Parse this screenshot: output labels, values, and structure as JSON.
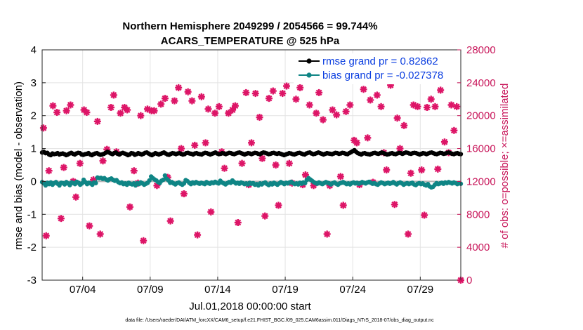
{
  "chart_data": {
    "type": "line",
    "title_line1": "Northern Hemisphere 2049299 / 2054566 = 99.744%",
    "title_line2": "ACARS_TEMPERATURE @ 525 hPa",
    "ylabel": "rmse and bias (model - observation)",
    "ylabel_right": "# of obs: o=possible; ×=assimilated",
    "xlabel": "Jul.01,2018 00:00:00 start",
    "footnote": "data file: /Users/raeder/DAI/ATM_forcXX/CAM6_setup/f.e21.FHIST_BGC.f09_025.CAM6assim.011/Diags_NTrS_2018-07/obs_diag_output.nc",
    "x_tick_labels": [
      "07/04",
      "07/09",
      "07/14",
      "07/19",
      "07/24",
      "07/29"
    ],
    "x_ticks_day": [
      4,
      9,
      14,
      19,
      24,
      29
    ],
    "xlim_day": [
      1.0,
      32.0
    ],
    "ylim": [
      -3,
      4
    ],
    "y_tick_labels": [
      "-3",
      "-2",
      "-1",
      "0",
      "1",
      "2",
      "3",
      "4"
    ],
    "ylim_right": [
      0,
      28000
    ],
    "y_tick_labels_right": [
      "0",
      "4000",
      "8000",
      "12000",
      "16000",
      "20000",
      "24000",
      "28000"
    ],
    "grid": true,
    "legend_position": "top-right",
    "series": [
      {
        "name": "rmse grand pr = 0.82862",
        "color": "#000000",
        "values": [
          0.88,
          0.9,
          0.86,
          0.87,
          0.82,
          0.8,
          0.85,
          0.83,
          0.84,
          0.86,
          0.82,
          0.84,
          0.85,
          0.83,
          0.8,
          0.82,
          0.85,
          0.87,
          0.84,
          0.82,
          0.85,
          0.87,
          0.86,
          0.82,
          0.81,
          0.83,
          0.84,
          0.86,
          0.82,
          0.8,
          0.83,
          0.85,
          0.86,
          0.83,
          0.81,
          0.82,
          0.84,
          0.87,
          0.9,
          0.88,
          0.85,
          0.83,
          0.86,
          0.88,
          0.84,
          0.82,
          0.85,
          0.87,
          0.85,
          0.83,
          0.8,
          0.82,
          0.86,
          0.85,
          0.81,
          0.83,
          0.86,
          0.84,
          0.82,
          0.84,
          0.87,
          0.88,
          0.85,
          0.82,
          0.8,
          0.83,
          0.86,
          0.84,
          0.82,
          0.84,
          0.86,
          0.88,
          0.85,
          0.82,
          0.81,
          0.84,
          0.86,
          0.85,
          0.83,
          0.85,
          0.86,
          0.84,
          0.82,
          0.83,
          0.86,
          0.87,
          0.85,
          0.84,
          0.82,
          0.85,
          0.86,
          0.84,
          0.83,
          0.82,
          0.85,
          0.87,
          0.86,
          0.84,
          0.82,
          0.84,
          0.86,
          0.88,
          0.85,
          0.83,
          0.84,
          0.86,
          0.85,
          0.83,
          0.85,
          0.87,
          0.86,
          0.84,
          0.83,
          0.85,
          0.87,
          0.88,
          0.86,
          0.84,
          0.82,
          0.84,
          0.86,
          0.85,
          0.83,
          0.85,
          0.87,
          0.86,
          0.84,
          0.83,
          0.86,
          0.88,
          0.87,
          0.85,
          0.83,
          0.84,
          0.86,
          0.87,
          0.85,
          0.84,
          0.86,
          0.84,
          0.82,
          0.8,
          0.82,
          0.84,
          0.86,
          0.85,
          0.83,
          0.82,
          0.84,
          0.86,
          0.87,
          0.85,
          0.83,
          0.82,
          0.85,
          0.87,
          0.88,
          0.85,
          0.83,
          0.84,
          0.86,
          0.88,
          0.86,
          0.84,
          0.82,
          0.84,
          0.86,
          0.85,
          0.84,
          0.83,
          0.85,
          0.87,
          0.86,
          0.84,
          0.85,
          0.87,
          0.86,
          0.84,
          0.83,
          0.86,
          0.89,
          0.92,
          0.95,
          0.9,
          0.86,
          0.84,
          0.82,
          0.85,
          0.86,
          0.84,
          0.83,
          0.82,
          0.84,
          0.86,
          0.87,
          0.85,
          0.84,
          0.86,
          0.88,
          0.86,
          0.84,
          0.82,
          0.83,
          0.85,
          0.86,
          0.84,
          0.83,
          0.85,
          0.87,
          0.86,
          0.84,
          0.86,
          0.88,
          0.87,
          0.85,
          0.84,
          0.86,
          0.87,
          0.86,
          0.84,
          0.82,
          0.84,
          0.86,
          0.85,
          0.83,
          0.85,
          0.87,
          0.88,
          0.86,
          0.84,
          0.83,
          0.85,
          0.87,
          0.86,
          0.84,
          0.85,
          0.87,
          0.88,
          0.86,
          0.84,
          0.83,
          0.85,
          0.86,
          0.84,
          0.83
        ]
      },
      {
        "name": "bias grand pr = -0.027378",
        "color": "#0f8585",
        "values": [
          -0.02,
          -0.06,
          -0.12,
          -0.04,
          -0.08,
          -0.03,
          -0.1,
          -0.05,
          -0.02,
          -0.07,
          -0.12,
          -0.04,
          -0.05,
          -0.09,
          -0.02,
          -0.06,
          -0.11,
          -0.03,
          -0.05,
          -0.08,
          -0.01,
          -0.04,
          -0.1,
          -0.06,
          0.05,
          -0.02,
          -0.08,
          -0.04,
          -0.06,
          -0.1,
          -0.03,
          -0.05,
          0.12,
          0.1,
          0.11,
          0.08,
          0.1,
          0.06,
          0.03,
          0.07,
          0.09,
          0.05,
          0.02,
          0.04,
          -0.02,
          -0.05,
          -0.03,
          -0.08,
          -0.06,
          -0.1,
          -0.04,
          -0.07,
          -0.09,
          -0.06,
          -0.12,
          -0.05,
          -0.08,
          -0.03,
          -0.06,
          -0.1,
          -0.07,
          -0.04,
          0.03,
          0.15,
          0.1,
          0.06,
          0.03,
          -0.02,
          -0.05,
          0.02,
          0.05,
          0.18,
          0.08,
          0.03,
          -0.04,
          -0.02,
          -0.06,
          -0.09,
          -0.05,
          -0.03,
          -0.07,
          -0.1,
          -0.06,
          0.04,
          0.01,
          -0.04,
          -0.08,
          -0.03,
          -0.06,
          -0.02,
          -0.05,
          -0.07,
          -0.04,
          -0.06,
          -0.08,
          -0.02,
          -0.05,
          -0.07,
          -0.03,
          -0.05,
          -0.01,
          -0.04,
          -0.06,
          0.02,
          -0.03,
          -0.06,
          -0.09,
          -0.05,
          -0.02,
          -0.04,
          0.03,
          -0.02,
          -0.06,
          -0.04,
          -0.07,
          -0.03,
          -0.05,
          -0.08,
          -0.06,
          -0.09,
          -0.04,
          -0.07,
          -0.05,
          -0.1,
          -0.08,
          -0.12,
          -0.06,
          -0.09,
          -0.05,
          -0.03,
          -0.08,
          -0.11,
          -0.06,
          -0.09,
          -0.04,
          -0.07,
          -0.1,
          -0.06,
          -0.02,
          -0.05,
          -0.08,
          -0.04,
          -0.06,
          -0.03,
          -0.01,
          -0.05,
          -0.08,
          -0.06,
          -0.09,
          -0.04,
          -0.07,
          -0.03,
          -0.05,
          0.05,
          0.1,
          0.06,
          0.02,
          -0.02,
          -0.05,
          -0.07,
          -0.03,
          -0.06,
          -0.08,
          -0.05,
          -0.02,
          -0.04,
          -0.06,
          -0.09,
          -0.05,
          -0.03,
          -0.07,
          -0.1,
          -0.06,
          -0.04,
          -0.02,
          -0.05,
          -0.08,
          -0.06,
          -0.09,
          -0.05,
          -0.03,
          -0.06,
          -0.04,
          -0.07,
          -0.05,
          -0.02,
          -0.04,
          -0.06,
          -0.03,
          -0.01,
          -0.04,
          -0.07,
          -0.05,
          -0.08,
          -0.1,
          -0.06,
          -0.03,
          -0.05,
          -0.08,
          -0.06,
          -0.04,
          -0.07,
          -0.05,
          -0.02,
          -0.06,
          -0.09,
          -0.05,
          -0.03,
          -0.06,
          -0.1,
          -0.07,
          -0.05,
          -0.08,
          -0.06,
          -0.04,
          -0.09,
          -0.11,
          -0.07,
          -0.05,
          -0.08,
          -0.06,
          -0.1,
          -0.12,
          -0.08,
          -0.15,
          -0.18,
          -0.16,
          -0.1,
          -0.05,
          -0.08,
          -0.06,
          -0.04,
          -0.07,
          -0.03,
          -0.05,
          -0.02,
          -0.04,
          -0.06,
          -0.03,
          -0.05,
          -0.08,
          -0.05,
          -0.07
        ]
      }
    ],
    "obs_assimilated": [
      {
        "x": 1.1,
        "y": 18500
      },
      {
        "x": 1.3,
        "y": 5400
      },
      {
        "x": 1.5,
        "y": 13300
      },
      {
        "x": 1.8,
        "y": 21200
      },
      {
        "x": 2.1,
        "y": 20400
      },
      {
        "x": 2.4,
        "y": 7500
      },
      {
        "x": 2.6,
        "y": 13700
      },
      {
        "x": 2.8,
        "y": 20600
      },
      {
        "x": 3.1,
        "y": 21300
      },
      {
        "x": 3.3,
        "y": 12000
      },
      {
        "x": 3.5,
        "y": 10100
      },
      {
        "x": 3.8,
        "y": 14200
      },
      {
        "x": 4.1,
        "y": 20700
      },
      {
        "x": 4.3,
        "y": 20400
      },
      {
        "x": 4.5,
        "y": 6600
      },
      {
        "x": 4.8,
        "y": 12200
      },
      {
        "x": 5.1,
        "y": 19300
      },
      {
        "x": 5.3,
        "y": 5600
      },
      {
        "x": 5.5,
        "y": 14500
      },
      {
        "x": 5.8,
        "y": 15900
      },
      {
        "x": 6.1,
        "y": 21000
      },
      {
        "x": 6.3,
        "y": 22500
      },
      {
        "x": 6.5,
        "y": 15600
      },
      {
        "x": 6.8,
        "y": 20300
      },
      {
        "x": 7.1,
        "y": 21000
      },
      {
        "x": 7.3,
        "y": 20700
      },
      {
        "x": 7.5,
        "y": 8900
      },
      {
        "x": 7.8,
        "y": 13300
      },
      {
        "x": 8.1,
        "y": 11800
      },
      {
        "x": 8.3,
        "y": 20000
      },
      {
        "x": 8.5,
        "y": 4800
      },
      {
        "x": 8.8,
        "y": 20800
      },
      {
        "x": 9.1,
        "y": 20600
      },
      {
        "x": 9.3,
        "y": 20600
      },
      {
        "x": 9.5,
        "y": 11500
      },
      {
        "x": 9.8,
        "y": 21400
      },
      {
        "x": 10.1,
        "y": 22100
      },
      {
        "x": 10.3,
        "y": 12500
      },
      {
        "x": 10.5,
        "y": 7200
      },
      {
        "x": 10.8,
        "y": 21800
      },
      {
        "x": 11.1,
        "y": 23400
      },
      {
        "x": 11.3,
        "y": 16000
      },
      {
        "x": 11.5,
        "y": 10500
      },
      {
        "x": 11.8,
        "y": 22900
      },
      {
        "x": 12.1,
        "y": 21800
      },
      {
        "x": 12.3,
        "y": 16400
      },
      {
        "x": 12.5,
        "y": 5500
      },
      {
        "x": 12.8,
        "y": 22300
      },
      {
        "x": 13.1,
        "y": 16700
      },
      {
        "x": 13.3,
        "y": 20800
      },
      {
        "x": 13.5,
        "y": 8300
      },
      {
        "x": 13.8,
        "y": 20300
      },
      {
        "x": 14.1,
        "y": 21100
      },
      {
        "x": 14.3,
        "y": 15600
      },
      {
        "x": 14.5,
        "y": 13600
      },
      {
        "x": 14.8,
        "y": 20300
      },
      {
        "x": 15.1,
        "y": 20700
      },
      {
        "x": 15.3,
        "y": 21200
      },
      {
        "x": 15.5,
        "y": 7000
      },
      {
        "x": 15.8,
        "y": 14200
      },
      {
        "x": 16.1,
        "y": 22800
      },
      {
        "x": 16.3,
        "y": 11600
      },
      {
        "x": 16.5,
        "y": 16700
      },
      {
        "x": 16.8,
        "y": 22700
      },
      {
        "x": 17.1,
        "y": 19800
      },
      {
        "x": 17.3,
        "y": 14800
      },
      {
        "x": 17.5,
        "y": 7800
      },
      {
        "x": 17.8,
        "y": 22100
      },
      {
        "x": 18.1,
        "y": 23000
      },
      {
        "x": 18.3,
        "y": 14000
      },
      {
        "x": 18.5,
        "y": 9100
      },
      {
        "x": 18.8,
        "y": 22700
      },
      {
        "x": 19.1,
        "y": 23600
      },
      {
        "x": 19.3,
        "y": 14200
      },
      {
        "x": 19.5,
        "y": 11800
      },
      {
        "x": 19.8,
        "y": 22000
      },
      {
        "x": 20.1,
        "y": 23400
      },
      {
        "x": 20.3,
        "y": 11600
      },
      {
        "x": 20.5,
        "y": 12800
      },
      {
        "x": 20.8,
        "y": 21300
      },
      {
        "x": 21.1,
        "y": 11500
      },
      {
        "x": 21.3,
        "y": 20300
      },
      {
        "x": 21.5,
        "y": 22800
      },
      {
        "x": 21.8,
        "y": 19500
      },
      {
        "x": 22.1,
        "y": 5600
      },
      {
        "x": 22.3,
        "y": 11500
      },
      {
        "x": 22.5,
        "y": 20700
      },
      {
        "x": 22.8,
        "y": 20100
      },
      {
        "x": 23.1,
        "y": 12600
      },
      {
        "x": 23.3,
        "y": 9100
      },
      {
        "x": 23.5,
        "y": 20500
      },
      {
        "x": 23.8,
        "y": 21300
      },
      {
        "x": 24.1,
        "y": 17000
      },
      {
        "x": 24.3,
        "y": 16700
      },
      {
        "x": 24.5,
        "y": 11600
      },
      {
        "x": 24.8,
        "y": 23200
      },
      {
        "x": 25.1,
        "y": 17300
      },
      {
        "x": 25.3,
        "y": 21900
      },
      {
        "x": 25.5,
        "y": 11900
      },
      {
        "x": 25.8,
        "y": 22500
      },
      {
        "x": 26.1,
        "y": 21100
      },
      {
        "x": 26.3,
        "y": 15500
      },
      {
        "x": 26.5,
        "y": 13400
      },
      {
        "x": 26.8,
        "y": 23700
      },
      {
        "x": 27.1,
        "y": 9200
      },
      {
        "x": 27.3,
        "y": 19700
      },
      {
        "x": 27.5,
        "y": 16000
      },
      {
        "x": 27.8,
        "y": 18800
      },
      {
        "x": 28.1,
        "y": 5600
      },
      {
        "x": 28.3,
        "y": 13000
      },
      {
        "x": 28.5,
        "y": 21300
      },
      {
        "x": 28.8,
        "y": 21100
      },
      {
        "x": 29.1,
        "y": 13400
      },
      {
        "x": 29.3,
        "y": 7900
      },
      {
        "x": 29.5,
        "y": 21000
      },
      {
        "x": 29.8,
        "y": 22000
      },
      {
        "x": 30.1,
        "y": 21100
      },
      {
        "x": 30.3,
        "y": 13500
      },
      {
        "x": 30.5,
        "y": 23100
      },
      {
        "x": 30.8,
        "y": 16800
      },
      {
        "x": 31.1,
        "y": 15500
      },
      {
        "x": 31.3,
        "y": 21300
      },
      {
        "x": 31.5,
        "y": 18200
      },
      {
        "x": 31.7,
        "y": 21100
      },
      {
        "x": 32.0,
        "y": 0
      }
    ]
  }
}
